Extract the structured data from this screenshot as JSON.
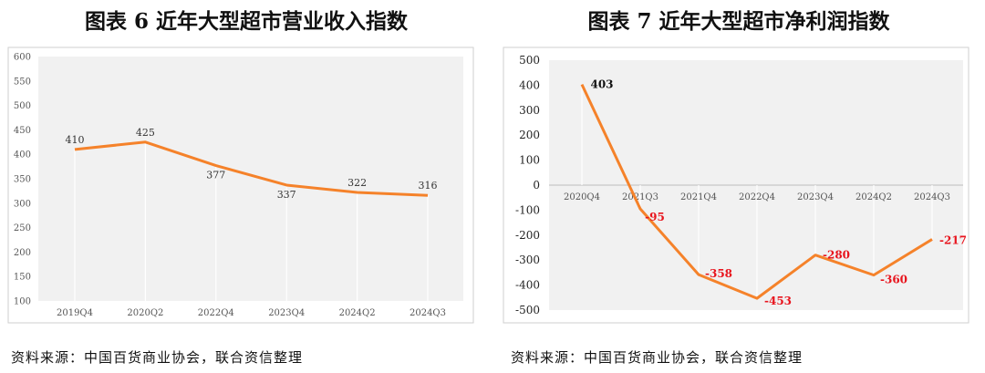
{
  "chart_data": [
    {
      "type": "line",
      "title": "图表 6  近年大型超市营业收入指数",
      "source": "资料来源：中国百货商业协会，联合资信整理",
      "categories": [
        "2019Q4",
        "2020Q2",
        "2022Q4",
        "2023Q4",
        "2024Q2",
        "2024Q3"
      ],
      "series": [
        {
          "values": [
            410,
            425,
            377,
            337,
            322,
            316
          ]
        }
      ],
      "ylim": [
        100,
        600
      ],
      "yticks": [
        100,
        150,
        200,
        250,
        300,
        350,
        400,
        450,
        500,
        550,
        600
      ],
      "grid": false,
      "line_color": "#f5822a",
      "label_color": "#333333"
    },
    {
      "type": "line",
      "title": "图表 7  近年大型超市净利润指数",
      "source": "资料来源：中国百货商业协会，联合资信整理",
      "categories": [
        "2020Q4",
        "2021Q3",
        "2021Q4",
        "2022Q4",
        "2023Q4",
        "2024Q2",
        "2024Q3"
      ],
      "series": [
        {
          "values": [
            403,
            -95,
            -358,
            -453,
            -280,
            -360,
            -217
          ]
        }
      ],
      "ylim": [
        -500,
        500
      ],
      "yticks": [
        -500,
        -400,
        -300,
        -200,
        -100,
        0,
        100,
        200,
        300,
        400,
        500
      ],
      "grid": false,
      "line_color": "#f5822a",
      "positive_label_color": "#111111",
      "negative_label_color": "#e8141d"
    }
  ]
}
